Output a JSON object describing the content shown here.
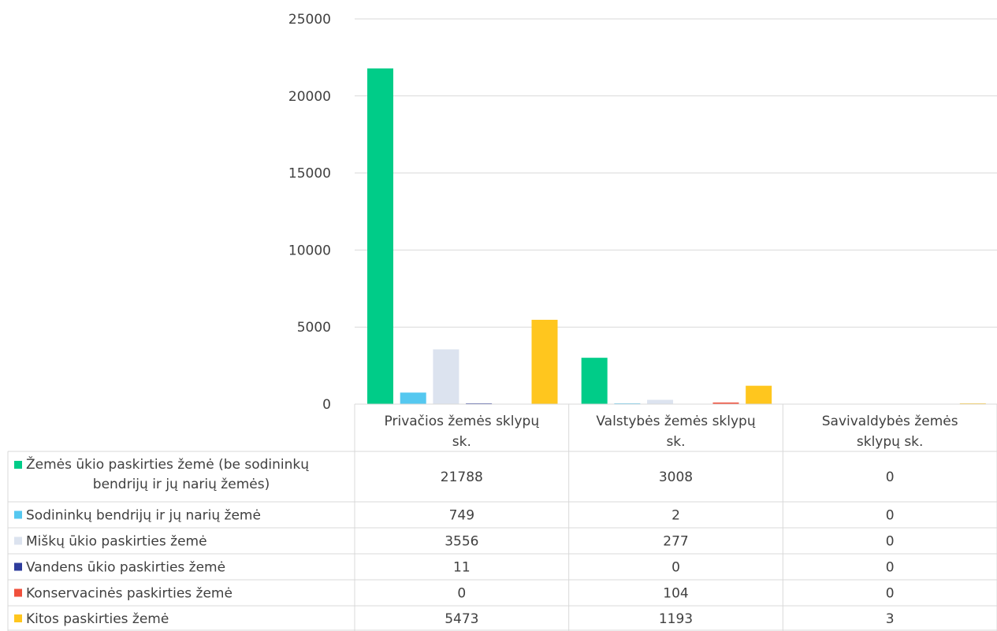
{
  "chart_data": {
    "type": "bar",
    "ylim": [
      0,
      25000
    ],
    "yticks": [
      "0",
      "5000",
      "10000",
      "15000",
      "20000",
      "25000"
    ],
    "categories": [
      [
        "Privačios žemės sklypų",
        "sk."
      ],
      [
        "Valstybės žemės sklypų",
        "sk."
      ],
      [
        "Savivaldybės žemės",
        "sklypų sk."
      ]
    ],
    "series": [
      {
        "name": [
          "Žemės ūkio paskirties žemė (be sodininkų",
          "bendrijų ir jų narių žemės)"
        ],
        "color": "#00cc88",
        "values": [
          21788,
          3008,
          0
        ]
      },
      {
        "name": [
          "Sodininkų bendrijų ir jų narių žemė"
        ],
        "color": "#55c8f0",
        "values": [
          749,
          2,
          0
        ]
      },
      {
        "name": [
          "Miškų ūkio paskirties žemė"
        ],
        "color": "#dce3ef",
        "values": [
          3556,
          277,
          0
        ]
      },
      {
        "name": [
          "Vandens ūkio paskirties žemė"
        ],
        "color": "#2e3c9c",
        "values": [
          11,
          0,
          0
        ]
      },
      {
        "name": [
          "Konservacinės paskirties žemė"
        ],
        "color": "#f0503c",
        "values": [
          0,
          104,
          0
        ]
      },
      {
        "name": [
          "Kitos paskirties žemė"
        ],
        "color": "#ffc61e",
        "values": [
          5473,
          1193,
          3
        ]
      }
    ],
    "table": true,
    "grid": true,
    "legend": "table-left"
  }
}
